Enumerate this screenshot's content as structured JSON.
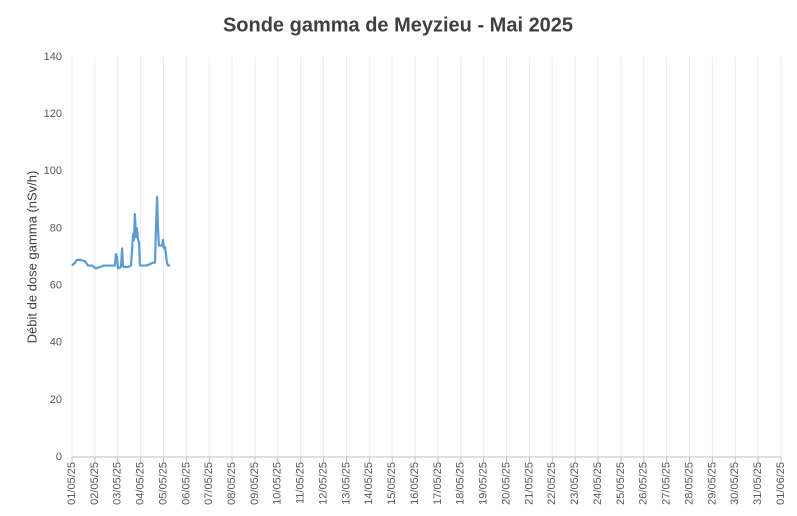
{
  "chart_data": {
    "type": "line",
    "title": "Sonde gamma de Meyzieu - Mai 2025",
    "y_label": "Débit de dose gamma (nSv/h)",
    "xlim": [
      1,
      32
    ],
    "xticks": [
      {
        "value": 1,
        "label": "01/05/25"
      },
      {
        "value": 2,
        "label": "02/05/25"
      },
      {
        "value": 3,
        "label": "03/05/25"
      },
      {
        "value": 4,
        "label": "04/05/25"
      },
      {
        "value": 5,
        "label": "05/05/25"
      },
      {
        "value": 6,
        "label": "06/05/25"
      },
      {
        "value": 7,
        "label": "07/05/25"
      },
      {
        "value": 8,
        "label": "08/05/25"
      },
      {
        "value": 9,
        "label": "09/05/25"
      },
      {
        "value": 10,
        "label": "10/05/25"
      },
      {
        "value": 11,
        "label": "11/05/25"
      },
      {
        "value": 12,
        "label": "12/05/25"
      },
      {
        "value": 13,
        "label": "13/05/25"
      },
      {
        "value": 14,
        "label": "14/05/25"
      },
      {
        "value": 15,
        "label": "15/05/25"
      },
      {
        "value": 16,
        "label": "16/05/25"
      },
      {
        "value": 17,
        "label": "17/05/25"
      },
      {
        "value": 18,
        "label": "18/05/25"
      },
      {
        "value": 19,
        "label": "19/05/25"
      },
      {
        "value": 20,
        "label": "20/05/25"
      },
      {
        "value": 21,
        "label": "21/05/25"
      },
      {
        "value": 22,
        "label": "22/05/25"
      },
      {
        "value": 23,
        "label": "23/05/25"
      },
      {
        "value": 24,
        "label": "24/05/25"
      },
      {
        "value": 25,
        "label": "25/05/25"
      },
      {
        "value": 26,
        "label": "26/05/25"
      },
      {
        "value": 27,
        "label": "27/05/25"
      },
      {
        "value": 28,
        "label": "28/05/25"
      },
      {
        "value": 29,
        "label": "29/05/25"
      },
      {
        "value": 30,
        "label": "30/05/25"
      },
      {
        "value": 31,
        "label": "31/05/25"
      },
      {
        "value": 32,
        "label": "01/06/25"
      }
    ],
    "ylim": [
      0,
      140
    ],
    "yticks": [
      0,
      20,
      40,
      60,
      80,
      100,
      120,
      140
    ],
    "grid": true,
    "series": [
      {
        "color": "#5b9bd5",
        "x": [
          1.0,
          1.13,
          1.22,
          1.35,
          1.57,
          1.7,
          1.87,
          2.05,
          2.22,
          2.4,
          2.66,
          2.88,
          2.92,
          2.97,
          3.01,
          3.14,
          3.19,
          3.23,
          3.27,
          3.45,
          3.58,
          3.67,
          3.71,
          3.75,
          3.8,
          3.84,
          3.89,
          3.93,
          3.97,
          4.02,
          4.06,
          4.24,
          4.41,
          4.54,
          4.63,
          4.67,
          4.72,
          4.76,
          4.8,
          4.85,
          4.94,
          4.98,
          5.02,
          5.07,
          5.15,
          5.2,
          5.29
        ],
        "values": [
          67,
          68,
          69,
          69,
          68.5,
          67,
          67,
          66,
          66.5,
          67,
          67,
          67,
          71,
          70,
          66,
          66.5,
          73,
          67,
          66.5,
          66.5,
          67,
          78,
          76,
          85,
          77,
          80,
          76,
          75,
          67,
          67,
          67,
          67,
          67.5,
          68,
          68,
          80,
          91,
          80,
          74,
          74,
          74,
          76,
          73,
          73.5,
          68,
          67,
          67
        ]
      }
    ]
  }
}
